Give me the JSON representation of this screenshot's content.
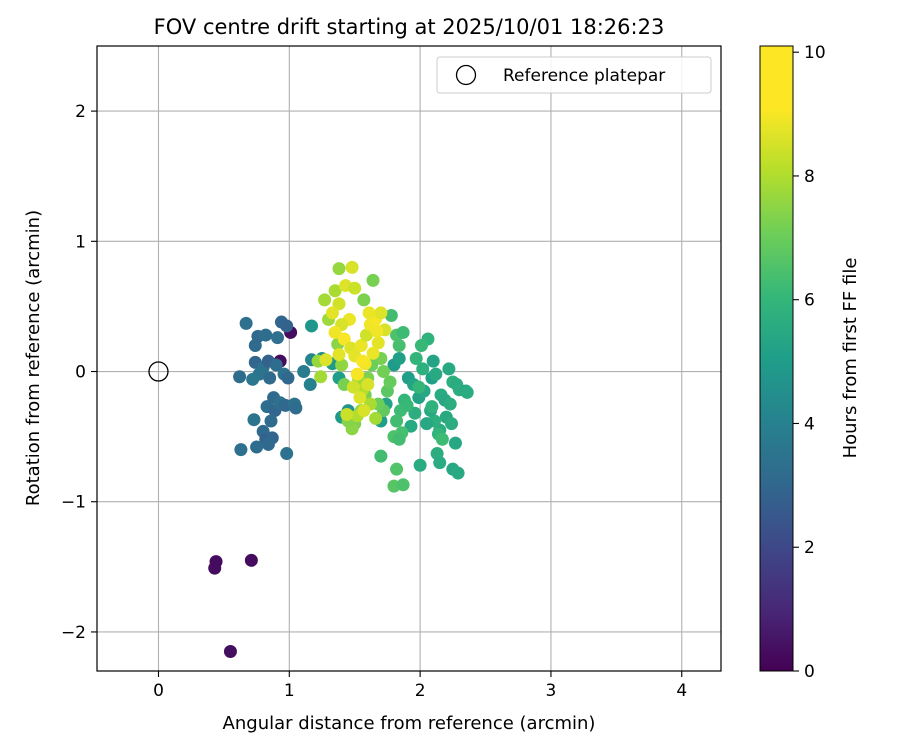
{
  "chart_data": {
    "type": "scatter",
    "title": "FOV centre drift starting at 2025/10/01 18:26:23",
    "xlabel": "Angular distance from reference (arcmin)",
    "ylabel": "Rotation from reference (arcmin)",
    "xlim": [
      -0.47,
      4.3
    ],
    "ylim": [
      -2.3,
      2.5
    ],
    "xticks": [
      0,
      1,
      2,
      3,
      4
    ],
    "xtick_labels": [
      "0",
      "1",
      "2",
      "3",
      "4"
    ],
    "yticks": [
      -2,
      -1,
      0,
      1,
      2
    ],
    "ytick_labels": [
      "−2",
      "−1",
      "0",
      "1",
      "2"
    ],
    "grid": true,
    "legend": {
      "placement": "top-right",
      "entries": [
        {
          "label": "Reference platepar",
          "marker": "open-circle"
        }
      ]
    },
    "reference_point": {
      "x": 0,
      "y": 0,
      "label": "Reference platepar"
    },
    "colorbar": {
      "label": "Hours from first FF file",
      "range": [
        0,
        10.1
      ],
      "ticks": [
        0,
        2,
        4,
        6,
        8,
        10
      ],
      "tick_labels": [
        "0",
        "2",
        "4",
        "6",
        "8",
        "10"
      ],
      "colormap": "viridis"
    },
    "series": [
      {
        "name": "FOV centre",
        "points": [
          {
            "x": 0.44,
            "y": -1.46,
            "t": 0.3
          },
          {
            "x": 0.43,
            "y": -1.51,
            "t": 0.3
          },
          {
            "x": 0.71,
            "y": -1.45,
            "t": 0.3
          },
          {
            "x": 0.55,
            "y": -2.15,
            "t": 0.4
          },
          {
            "x": 1.01,
            "y": 0.3,
            "t": 0.3
          },
          {
            "x": 0.93,
            "y": 0.08,
            "t": 0.3
          },
          {
            "x": 0.62,
            "y": -0.04,
            "t": 3.6
          },
          {
            "x": 0.67,
            "y": 0.37,
            "t": 3.7
          },
          {
            "x": 0.74,
            "y": 0.2,
            "t": 3.5
          },
          {
            "x": 0.76,
            "y": 0.27,
            "t": 3.4
          },
          {
            "x": 0.82,
            "y": 0.28,
            "t": 3.6
          },
          {
            "x": 0.74,
            "y": 0.07,
            "t": 3.3
          },
          {
            "x": 0.8,
            "y": 0.03,
            "t": 3.8
          },
          {
            "x": 0.84,
            "y": 0.08,
            "t": 3.2
          },
          {
            "x": 0.77,
            "y": -0.02,
            "t": 3.9
          },
          {
            "x": 0.72,
            "y": -0.06,
            "t": 4.0
          },
          {
            "x": 0.85,
            "y": -0.05,
            "t": 3.5
          },
          {
            "x": 0.91,
            "y": 0.26,
            "t": 3.7
          },
          {
            "x": 0.94,
            "y": 0.38,
            "t": 3.3
          },
          {
            "x": 0.98,
            "y": 0.35,
            "t": 3.2
          },
          {
            "x": 0.9,
            "y": 0.05,
            "t": 3.6
          },
          {
            "x": 0.96,
            "y": -0.02,
            "t": 3.8
          },
          {
            "x": 0.99,
            "y": -0.05,
            "t": 3.4
          },
          {
            "x": 0.88,
            "y": -0.2,
            "t": 3.5
          },
          {
            "x": 0.83,
            "y": -0.27,
            "t": 3.6
          },
          {
            "x": 0.89,
            "y": -0.3,
            "t": 3.3
          },
          {
            "x": 0.93,
            "y": -0.24,
            "t": 3.7
          },
          {
            "x": 0.97,
            "y": -0.26,
            "t": 3.4
          },
          {
            "x": 1.04,
            "y": -0.25,
            "t": 3.8
          },
          {
            "x": 1.05,
            "y": -0.28,
            "t": 3.6
          },
          {
            "x": 0.73,
            "y": -0.37,
            "t": 3.9
          },
          {
            "x": 0.8,
            "y": -0.46,
            "t": 3.5
          },
          {
            "x": 0.82,
            "y": -0.52,
            "t": 3.2
          },
          {
            "x": 0.87,
            "y": -0.51,
            "t": 3.3
          },
          {
            "x": 0.84,
            "y": -0.56,
            "t": 3.4
          },
          {
            "x": 0.63,
            "y": -0.6,
            "t": 3.7
          },
          {
            "x": 0.75,
            "y": -0.58,
            "t": 3.6
          },
          {
            "x": 0.98,
            "y": -0.63,
            "t": 3.8
          },
          {
            "x": 0.86,
            "y": -0.38,
            "t": 3.5
          },
          {
            "x": 1.11,
            "y": 0.0,
            "t": 4.2
          },
          {
            "x": 1.16,
            "y": -0.1,
            "t": 4.4
          },
          {
            "x": 1.17,
            "y": 0.09,
            "t": 4.6
          },
          {
            "x": 1.25,
            "y": 0.1,
            "t": 4.8
          },
          {
            "x": 1.17,
            "y": 0.35,
            "t": 5.3
          },
          {
            "x": 1.33,
            "y": 0.06,
            "t": 5.5
          },
          {
            "x": 1.38,
            "y": -0.05,
            "t": 5.6
          },
          {
            "x": 1.4,
            "y": -0.35,
            "t": 5.4
          },
          {
            "x": 1.45,
            "y": -0.3,
            "t": 5.2
          },
          {
            "x": 1.7,
            "y": -0.38,
            "t": 5.6
          },
          {
            "x": 1.74,
            "y": -0.25,
            "t": 5.8
          },
          {
            "x": 1.8,
            "y": 0.05,
            "t": 5.5
          },
          {
            "x": 1.84,
            "y": 0.1,
            "t": 5.7
          },
          {
            "x": 1.91,
            "y": -0.05,
            "t": 5.6
          },
          {
            "x": 1.95,
            "y": -0.1,
            "t": 5.9
          },
          {
            "x": 1.99,
            "y": -0.2,
            "t": 5.8
          },
          {
            "x": 2.03,
            "y": -0.15,
            "t": 6.0
          },
          {
            "x": 2.09,
            "y": -0.05,
            "t": 5.7
          },
          {
            "x": 2.1,
            "y": 0.08,
            "t": 5.9
          },
          {
            "x": 2.12,
            "y": -0.02,
            "t": 6.1
          },
          {
            "x": 2.16,
            "y": -0.18,
            "t": 6.2
          },
          {
            "x": 2.19,
            "y": -0.22,
            "t": 6.0
          },
          {
            "x": 2.23,
            "y": -0.25,
            "t": 6.3
          },
          {
            "x": 2.22,
            "y": 0.02,
            "t": 6.1
          },
          {
            "x": 2.25,
            "y": -0.08,
            "t": 6.4
          },
          {
            "x": 2.28,
            "y": -0.1,
            "t": 6.2
          },
          {
            "x": 2.3,
            "y": -0.14,
            "t": 6.3
          },
          {
            "x": 2.35,
            "y": -0.15,
            "t": 6.0
          },
          {
            "x": 2.36,
            "y": -0.16,
            "t": 6.2
          },
          {
            "x": 2.2,
            "y": -0.35,
            "t": 6.1
          },
          {
            "x": 2.24,
            "y": -0.4,
            "t": 6.3
          },
          {
            "x": 2.27,
            "y": -0.55,
            "t": 6.0
          },
          {
            "x": 2.15,
            "y": -0.45,
            "t": 6.2
          },
          {
            "x": 2.11,
            "y": -0.38,
            "t": 6.4
          },
          {
            "x": 2.08,
            "y": -0.3,
            "t": 6.1
          },
          {
            "x": 2.13,
            "y": -0.63,
            "t": 6.3
          },
          {
            "x": 2.15,
            "y": -0.7,
            "t": 6.2
          },
          {
            "x": 2.25,
            "y": -0.75,
            "t": 6.0
          },
          {
            "x": 2.29,
            "y": -0.78,
            "t": 6.1
          },
          {
            "x": 2.0,
            "y": -0.72,
            "t": 6.2
          },
          {
            "x": 2.05,
            "y": -0.4,
            "t": 6.0
          },
          {
            "x": 1.96,
            "y": -0.32,
            "t": 6.3
          },
          {
            "x": 1.93,
            "y": -0.42,
            "t": 6.1
          },
          {
            "x": 2.02,
            "y": 0.02,
            "t": 6.4
          },
          {
            "x": 2.06,
            "y": 0.25,
            "t": 6.5
          },
          {
            "x": 2.01,
            "y": 0.2,
            "t": 6.8
          },
          {
            "x": 1.97,
            "y": 0.1,
            "t": 6.6
          },
          {
            "x": 1.88,
            "y": -0.22,
            "t": 6.7
          },
          {
            "x": 1.85,
            "y": -0.3,
            "t": 6.9
          },
          {
            "x": 1.82,
            "y": -0.38,
            "t": 7.0
          },
          {
            "x": 1.86,
            "y": -0.47,
            "t": 7.1
          },
          {
            "x": 1.8,
            "y": -0.5,
            "t": 7.2
          },
          {
            "x": 1.84,
            "y": -0.52,
            "t": 7.0
          },
          {
            "x": 1.9,
            "y": -0.26,
            "t": 6.8
          },
          {
            "x": 1.99,
            "y": -0.12,
            "t": 6.7
          },
          {
            "x": 2.14,
            "y": -0.48,
            "t": 6.6
          },
          {
            "x": 2.17,
            "y": -0.52,
            "t": 6.9
          },
          {
            "x": 2.09,
            "y": -0.27,
            "t": 6.5
          },
          {
            "x": 1.78,
            "y": 0.43,
            "t": 7.0
          },
          {
            "x": 1.82,
            "y": 0.28,
            "t": 7.2
          },
          {
            "x": 1.87,
            "y": 0.3,
            "t": 6.9
          },
          {
            "x": 1.84,
            "y": 0.2,
            "t": 7.1
          },
          {
            "x": 1.7,
            "y": -0.65,
            "t": 7.0
          },
          {
            "x": 1.82,
            "y": -0.75,
            "t": 7.3
          },
          {
            "x": 1.8,
            "y": -0.88,
            "t": 7.4
          },
          {
            "x": 1.87,
            "y": -0.87,
            "t": 7.2
          },
          {
            "x": 1.72,
            "y": -0.3,
            "t": 7.6
          },
          {
            "x": 1.68,
            "y": -0.25,
            "t": 7.8
          },
          {
            "x": 1.75,
            "y": -0.15,
            "t": 7.5
          },
          {
            "x": 1.77,
            "y": -0.08,
            "t": 7.7
          },
          {
            "x": 1.72,
            "y": 0.0,
            "t": 7.9
          },
          {
            "x": 1.7,
            "y": 0.1,
            "t": 8.0
          },
          {
            "x": 1.63,
            "y": 0.05,
            "t": 7.8
          },
          {
            "x": 1.6,
            "y": -0.05,
            "t": 8.1
          },
          {
            "x": 1.58,
            "y": -0.18,
            "t": 8.0
          },
          {
            "x": 1.55,
            "y": -0.3,
            "t": 8.2
          },
          {
            "x": 1.5,
            "y": -0.4,
            "t": 8.1
          },
          {
            "x": 1.48,
            "y": -0.44,
            "t": 8.3
          },
          {
            "x": 1.45,
            "y": -0.38,
            "t": 8.2
          },
          {
            "x": 1.42,
            "y": -0.1,
            "t": 8.0
          },
          {
            "x": 1.4,
            "y": 0.05,
            "t": 8.4
          },
          {
            "x": 1.37,
            "y": 0.21,
            "t": 8.3
          },
          {
            "x": 1.57,
            "y": 0.55,
            "t": 8.1
          },
          {
            "x": 1.64,
            "y": 0.7,
            "t": 8.0
          },
          {
            "x": 1.38,
            "y": 0.79,
            "t": 8.5
          },
          {
            "x": 1.3,
            "y": 0.4,
            "t": 8.6
          },
          {
            "x": 1.27,
            "y": 0.55,
            "t": 8.7
          },
          {
            "x": 1.35,
            "y": 0.62,
            "t": 8.8
          },
          {
            "x": 1.22,
            "y": 0.08,
            "t": 8.5
          },
          {
            "x": 1.24,
            "y": -0.04,
            "t": 8.7
          },
          {
            "x": 1.53,
            "y": -0.06,
            "t": 8.6
          },
          {
            "x": 1.56,
            "y": -0.14,
            "t": 8.9
          },
          {
            "x": 1.62,
            "y": -0.25,
            "t": 8.8
          },
          {
            "x": 1.66,
            "y": -0.36,
            "t": 8.7
          },
          {
            "x": 1.52,
            "y": -0.34,
            "t": 8.9
          },
          {
            "x": 1.48,
            "y": 0.8,
            "t": 9.5
          },
          {
            "x": 1.43,
            "y": 0.66,
            "t": 9.6
          },
          {
            "x": 1.5,
            "y": 0.64,
            "t": 9.3
          },
          {
            "x": 1.38,
            "y": 0.52,
            "t": 9.4
          },
          {
            "x": 1.33,
            "y": 0.45,
            "t": 9.7
          },
          {
            "x": 1.46,
            "y": 0.4,
            "t": 9.8
          },
          {
            "x": 1.4,
            "y": 0.36,
            "t": 9.5
          },
          {
            "x": 1.35,
            "y": 0.3,
            "t": 9.9
          },
          {
            "x": 1.42,
            "y": 0.25,
            "t": 10.0
          },
          {
            "x": 1.47,
            "y": 0.18,
            "t": 9.6
          },
          {
            "x": 1.5,
            "y": 0.12,
            "t": 9.7
          },
          {
            "x": 1.55,
            "y": 0.2,
            "t": 9.8
          },
          {
            "x": 1.59,
            "y": 0.28,
            "t": 9.4
          },
          {
            "x": 1.62,
            "y": 0.36,
            "t": 9.9
          },
          {
            "x": 1.66,
            "y": 0.4,
            "t": 10.0
          },
          {
            "x": 1.7,
            "y": 0.45,
            "t": 9.6
          },
          {
            "x": 1.73,
            "y": 0.32,
            "t": 9.5
          },
          {
            "x": 1.68,
            "y": 0.22,
            "t": 9.7
          },
          {
            "x": 1.64,
            "y": 0.14,
            "t": 9.8
          },
          {
            "x": 1.58,
            "y": 0.06,
            "t": 9.9
          },
          {
            "x": 1.52,
            "y": -0.02,
            "t": 10.0
          },
          {
            "x": 1.49,
            "y": -0.12,
            "t": 9.4
          },
          {
            "x": 1.54,
            "y": -0.2,
            "t": 9.6
          },
          {
            "x": 1.57,
            "y": -0.3,
            "t": 9.5
          },
          {
            "x": 1.44,
            "y": -0.33,
            "t": 9.3
          },
          {
            "x": 1.61,
            "y": 0.45,
            "t": 9.8
          },
          {
            "x": 1.67,
            "y": 0.31,
            "t": 9.9
          },
          {
            "x": 1.38,
            "y": 0.13,
            "t": 9.7
          },
          {
            "x": 1.28,
            "y": 0.09,
            "t": 9.6
          },
          {
            "x": 1.56,
            "y": 0.08,
            "t": 10.0
          },
          {
            "x": 1.6,
            "y": -0.1,
            "t": 9.5
          }
        ]
      }
    ]
  }
}
